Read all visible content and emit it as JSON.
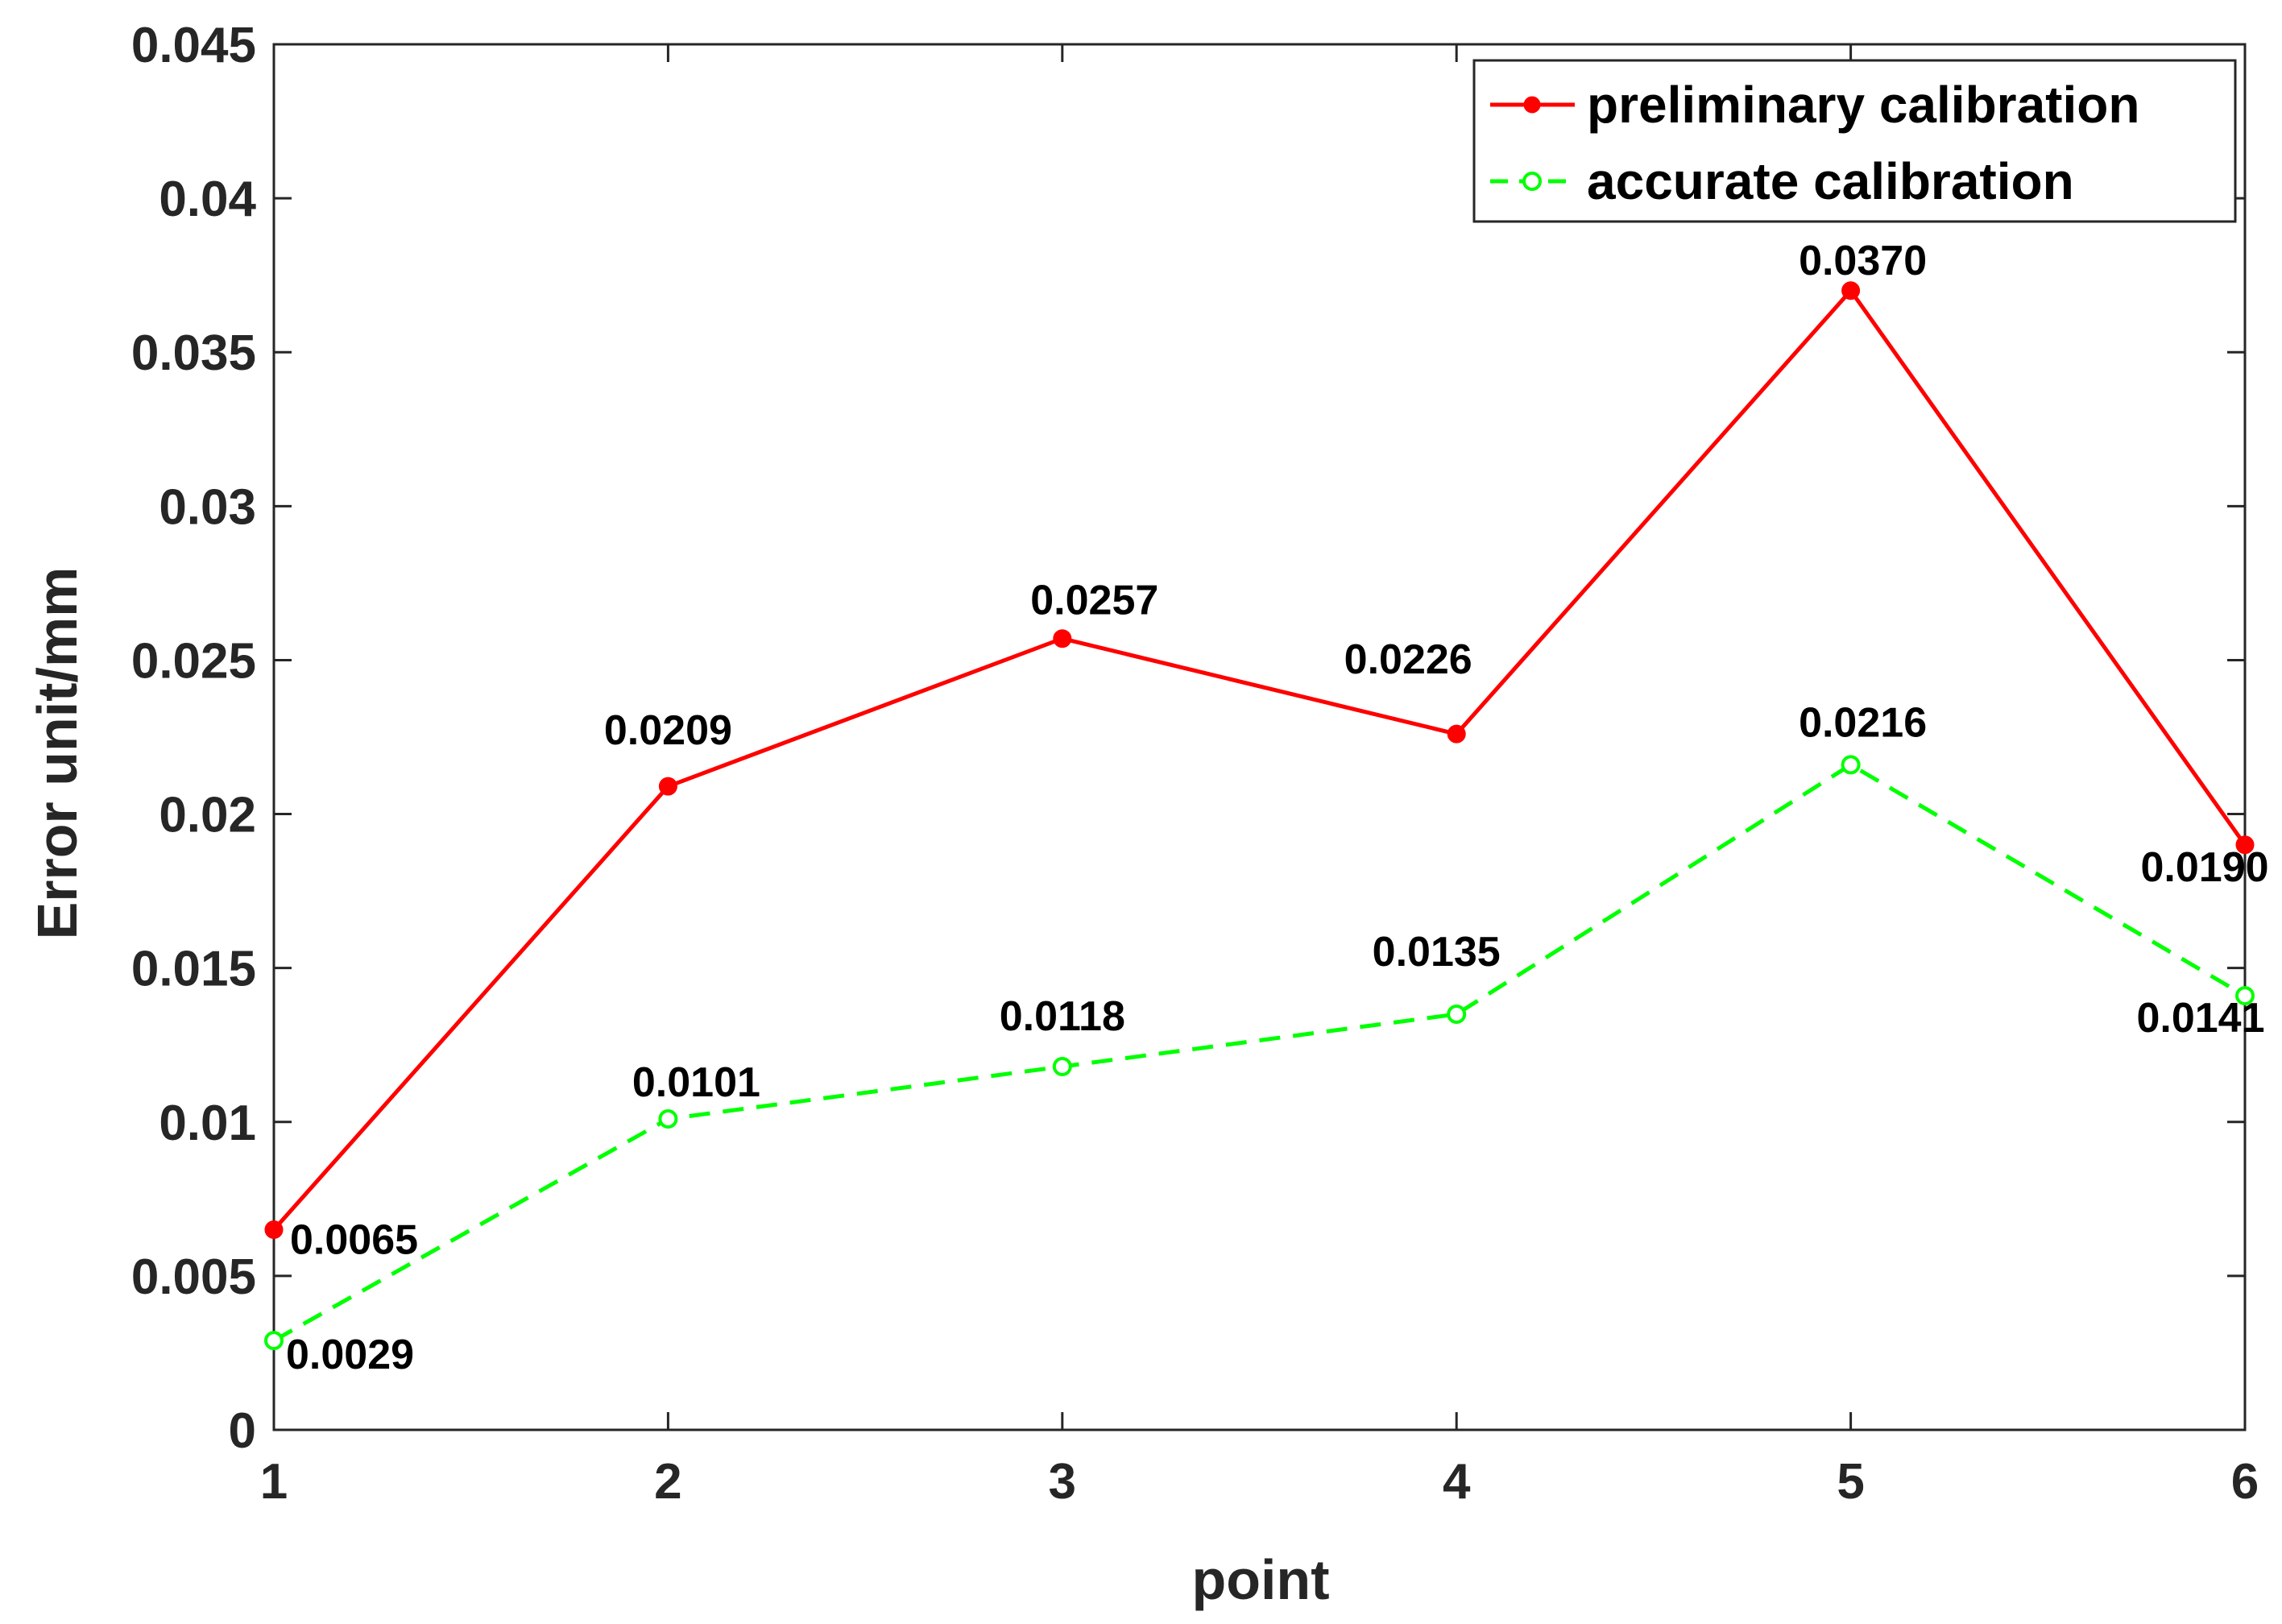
{
  "chart_data": {
    "type": "line",
    "xlabel": "point",
    "ylabel": "Error unit/mm",
    "xlim": [
      1,
      6
    ],
    "ylim": [
      0,
      0.045
    ],
    "x_ticks": [
      "1",
      "2",
      "3",
      "4",
      "5",
      "6"
    ],
    "y_ticks": [
      "0",
      "0.005",
      "0.01",
      "0.015",
      "0.02",
      "0.025",
      "0.03",
      "0.035",
      "0.04",
      "0.045"
    ],
    "x": [
      1,
      2,
      3,
      4,
      5,
      6
    ],
    "legend_position": "top-right",
    "series": [
      {
        "name": "preliminary calibration",
        "color": "#ff0000",
        "line_style": "solid",
        "marker": "filled-circle",
        "values": [
          0.0065,
          0.0209,
          0.0257,
          0.0226,
          0.037,
          0.019
        ],
        "labels": [
          "0.0065",
          "0.0209",
          "0.0257",
          "0.0226",
          "0.0370",
          "0.0190"
        ]
      },
      {
        "name": "accurate calibration",
        "color": "#00ff00",
        "line_style": "dashed",
        "marker": "open-circle",
        "values": [
          0.0029,
          0.0101,
          0.0118,
          0.0135,
          0.0216,
          0.0141
        ],
        "labels": [
          "0.0029",
          "0.0101",
          "0.0118",
          "0.0135",
          "0.0216",
          "0.0141"
        ]
      }
    ]
  }
}
